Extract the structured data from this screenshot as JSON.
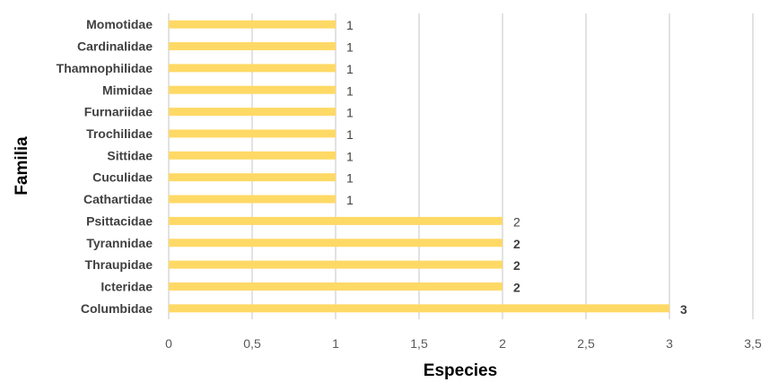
{
  "chart_data": {
    "type": "bar",
    "orientation": "horizontal",
    "categories": [
      "Momotidae",
      "Cardinalidae",
      "Thamnophilidae",
      "Mimidae",
      "Furnariidae",
      "Trochilidae",
      "Sittidae",
      "Cuculidae",
      "Cathartidae",
      "Psittacidae",
      "Tyrannidae",
      "Thraupidae",
      "Icteridae",
      "Columbidae"
    ],
    "values": [
      1,
      1,
      1,
      1,
      1,
      1,
      1,
      1,
      1,
      2,
      2,
      2,
      2,
      3
    ],
    "data_labels": [
      "1",
      "1",
      "1",
      "1",
      "1",
      "1",
      "1",
      "1",
      "1",
      "2",
      "2",
      "2",
      "2",
      "3"
    ],
    "bold_data_labels": [
      false,
      false,
      false,
      false,
      false,
      false,
      false,
      false,
      false,
      false,
      true,
      true,
      true,
      true
    ],
    "xlabel": "Especies",
    "ylabel": "Familia",
    "xlim": [
      0,
      3.5
    ],
    "x_ticks": [
      0,
      0.5,
      1,
      1.5,
      2,
      2.5,
      3,
      3.5
    ],
    "x_tick_labels": [
      "0",
      "0,5",
      "1",
      "1,5",
      "2",
      "2,5",
      "3",
      "3,5"
    ],
    "grid": "vertical",
    "legend": "none",
    "colors": {
      "bar": "#FFD966",
      "grid": "#D9D9D9"
    }
  }
}
